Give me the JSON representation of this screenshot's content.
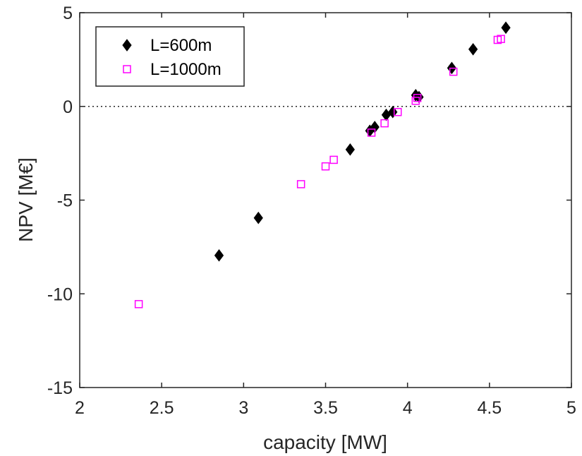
{
  "chart_data": {
    "type": "scatter",
    "xlabel": "capacity [MW]",
    "ylabel": "NPV [M€]",
    "xlim": [
      2,
      5
    ],
    "ylim": [
      -15,
      5
    ],
    "xticks": [
      2,
      2.5,
      3,
      3.5,
      4,
      4.5,
      5
    ],
    "xtick_labels": [
      "2",
      "2.5",
      "3",
      "3.5",
      "4",
      "4.5",
      "5"
    ],
    "yticks": [
      -15,
      -10,
      -5,
      0,
      5
    ],
    "ytick_labels": [
      "-15",
      "-10",
      "-5",
      "0",
      "5"
    ],
    "grid": false,
    "reference_line": {
      "y": 0,
      "style": "dotted"
    },
    "legend": {
      "placement": "top-left",
      "entries": [
        "L=600m",
        "L=1000m"
      ]
    },
    "series": [
      {
        "name": "L=600m",
        "marker": "diamond-filled",
        "color": "#000000",
        "points": [
          {
            "x": 2.85,
            "y": -7.95
          },
          {
            "x": 3.09,
            "y": -5.95
          },
          {
            "x": 3.65,
            "y": -2.3
          },
          {
            "x": 3.77,
            "y": -1.3
          },
          {
            "x": 3.8,
            "y": -1.1
          },
          {
            "x": 3.87,
            "y": -0.45
          },
          {
            "x": 3.91,
            "y": -0.3
          },
          {
            "x": 4.05,
            "y": 0.6
          },
          {
            "x": 4.07,
            "y": 0.5
          },
          {
            "x": 4.27,
            "y": 2.05
          },
          {
            "x": 4.4,
            "y": 3.05
          },
          {
            "x": 4.6,
            "y": 4.2
          }
        ]
      },
      {
        "name": "L=1000m",
        "marker": "square-open",
        "color": "#ff00ff",
        "points": [
          {
            "x": 2.36,
            "y": -10.55
          },
          {
            "x": 3.35,
            "y": -4.15
          },
          {
            "x": 3.5,
            "y": -3.2
          },
          {
            "x": 3.55,
            "y": -2.85
          },
          {
            "x": 3.78,
            "y": -1.4
          },
          {
            "x": 3.86,
            "y": -0.9
          },
          {
            "x": 3.94,
            "y": -0.3
          },
          {
            "x": 4.05,
            "y": 0.3
          },
          {
            "x": 4.06,
            "y": 0.45
          },
          {
            "x": 4.28,
            "y": 1.85
          },
          {
            "x": 4.55,
            "y": 3.55
          },
          {
            "x": 4.57,
            "y": 3.6
          }
        ]
      }
    ]
  }
}
